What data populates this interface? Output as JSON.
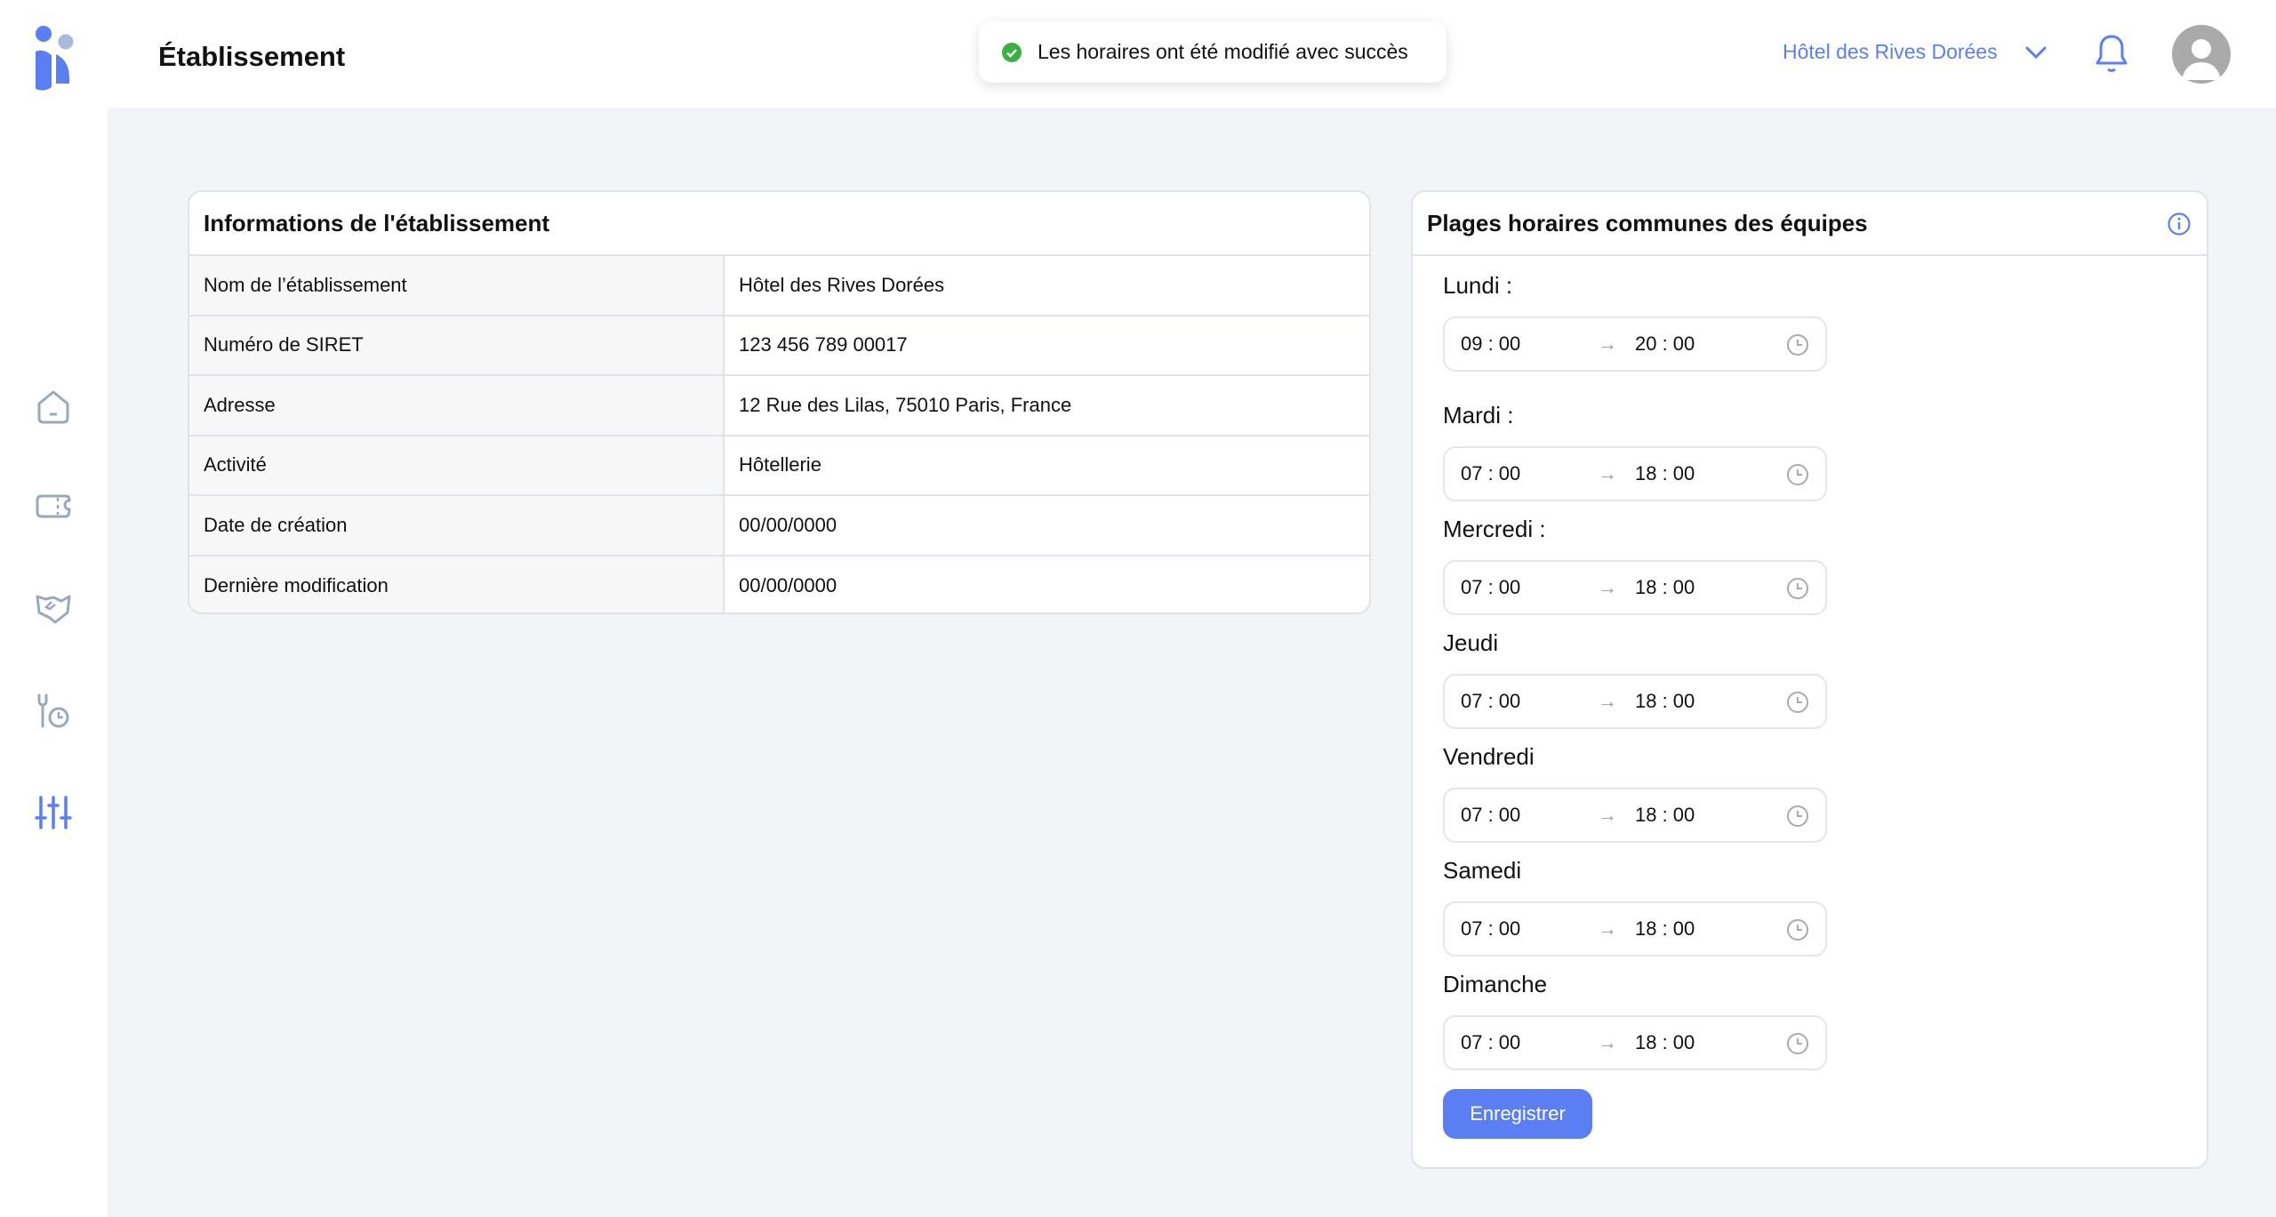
{
  "header": {
    "title": "Établissement",
    "establishment": "Hôtel des Rives Dorées"
  },
  "toast": {
    "message": "Les horaires ont été modifié avec succès"
  },
  "colors": {
    "accent": "#5b7ff2",
    "success": "#3cb043",
    "icon_gray": "#9aa8bd"
  },
  "info": {
    "title": "Informations de l'établissement",
    "rows": [
      {
        "label": "Nom de l’établissement",
        "value": "Hôtel des Rives Dorées"
      },
      {
        "label": "Numéro de SIRET",
        "value": "123 456 789 00017"
      },
      {
        "label": "Adresse",
        "value": "12 Rue des Lilas, 75010 Paris, France"
      },
      {
        "label": "Activité",
        "value": "Hôtellerie"
      },
      {
        "label": "Date de création",
        "value": "00/00/0000"
      },
      {
        "label": "Dernière modification",
        "value": "00/00/0000"
      }
    ]
  },
  "schedule": {
    "title": "Plages horaires communes des équipes",
    "days": [
      {
        "label": "Lundi :",
        "start": "09 : 00",
        "end": "20 : 00"
      },
      {
        "label": "Mardi :",
        "start": "07 : 00",
        "end": "18 : 00"
      },
      {
        "label": "Mercredi :",
        "start": "07 : 00",
        "end": "18 : 00"
      },
      {
        "label": "Jeudi",
        "start": "07 : 00",
        "end": "18 : 00"
      },
      {
        "label": "Vendredi",
        "start": "07 : 00",
        "end": "18 : 00"
      },
      {
        "label": "Samedi",
        "start": "07 : 00",
        "end": "18 : 00"
      },
      {
        "label": "Dimanche",
        "start": "07 : 00",
        "end": "18 : 00"
      }
    ],
    "save_label": "Enregistrer",
    "arrow": "→"
  }
}
